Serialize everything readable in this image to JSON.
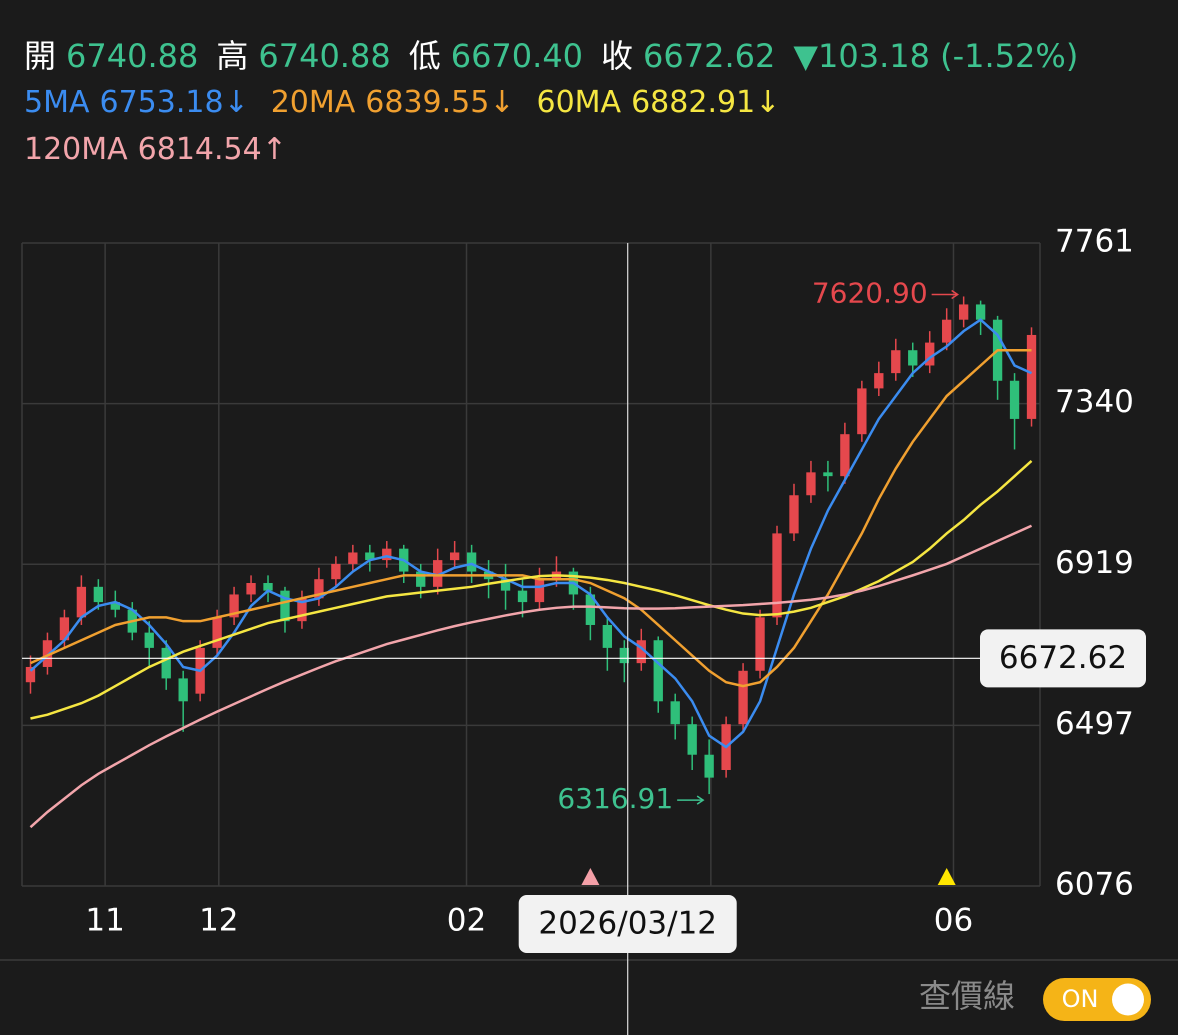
{
  "header": {
    "quote": [
      {
        "label": "開",
        "value": "6740.88"
      },
      {
        "label": "高",
        "value": "6740.88"
      },
      {
        "label": "低",
        "value": "6670.40"
      },
      {
        "label": "收",
        "value": "6672.62"
      }
    ],
    "change": "▼103.18 (-1.52%)",
    "quote_color": "#3ec28f"
  },
  "chart_data": {
    "type": "candlestick",
    "up_color": "#e5484d",
    "down_color": "#2fbf7a",
    "candles": {
      "open": [
        6610,
        6650,
        6720,
        6780,
        6860,
        6820,
        6800,
        6740,
        6700,
        6620,
        6580,
        6700,
        6780,
        6840,
        6870,
        6850,
        6770,
        6830,
        6880,
        6920,
        6950,
        6930,
        6960,
        6900,
        6860,
        6930,
        6950,
        6900,
        6880,
        6850,
        6820,
        6880,
        6900,
        6840,
        6760,
        6700,
        6660,
        6720,
        6560,
        6500,
        6420,
        6380,
        6500,
        6640,
        6780,
        7000,
        7100,
        7160,
        7150,
        7260,
        7380,
        7420,
        7480,
        7440,
        7500,
        7560,
        7600,
        7560,
        7400,
        7300
      ],
      "high": [
        6680,
        6740,
        6800,
        6890,
        6880,
        6850,
        6820,
        6770,
        6720,
        6640,
        6720,
        6800,
        6860,
        6890,
        6890,
        6860,
        6850,
        6910,
        6940,
        6970,
        6970,
        6980,
        6970,
        6920,
        6960,
        6980,
        6970,
        6930,
        6920,
        6880,
        6910,
        6940,
        6910,
        6860,
        6780,
        6720,
        6750,
        6730,
        6580,
        6520,
        6460,
        6520,
        6660,
        6800,
        7020,
        7130,
        7190,
        7190,
        7290,
        7400,
        7450,
        7510,
        7500,
        7530,
        7590,
        7620.9,
        7610,
        7570,
        7420,
        7540
      ],
      "low": [
        6580,
        6630,
        6700,
        6760,
        6800,
        6780,
        6720,
        6650,
        6590,
        6480,
        6560,
        6680,
        6760,
        6820,
        6820,
        6740,
        6750,
        6810,
        6860,
        6900,
        6900,
        6910,
        6870,
        6830,
        6840,
        6910,
        6870,
        6830,
        6800,
        6780,
        6800,
        6860,
        6800,
        6720,
        6640,
        6610,
        6640,
        6530,
        6460,
        6380,
        6316.91,
        6360,
        6480,
        6620,
        6760,
        6980,
        7080,
        7110,
        7130,
        7240,
        7360,
        7400,
        7410,
        7420,
        7480,
        7540,
        7520,
        7350,
        7220,
        7280
      ],
      "close": [
        6650,
        6720,
        6780,
        6860,
        6820,
        6800,
        6740,
        6700,
        6620,
        6560,
        6700,
        6780,
        6840,
        6870,
        6850,
        6770,
        6830,
        6880,
        6920,
        6950,
        6930,
        6960,
        6900,
        6860,
        6930,
        6950,
        6900,
        6880,
        6850,
        6820,
        6880,
        6900,
        6840,
        6760,
        6700,
        6660,
        6720,
        6560,
        6500,
        6420,
        6360,
        6500,
        6640,
        6780,
        7000,
        7100,
        7160,
        7150,
        7260,
        7380,
        7420,
        7480,
        7440,
        7500,
        7560,
        7600,
        7560,
        7400,
        7300,
        7520
      ]
    },
    "series": [
      {
        "name": "5MA",
        "color": "#3b8cf0",
        "current": 6753.18,
        "trend": "↓",
        "values": [
          6640,
          6680,
          6720,
          6780,
          6810,
          6820,
          6800,
          6760,
          6710,
          6650,
          6640,
          6680,
          6740,
          6810,
          6850,
          6830,
          6820,
          6830,
          6860,
          6900,
          6930,
          6940,
          6930,
          6900,
          6890,
          6910,
          6920,
          6900,
          6880,
          6860,
          6860,
          6870,
          6870,
          6840,
          6780,
          6730,
          6700,
          6660,
          6620,
          6560,
          6470,
          6440,
          6480,
          6560,
          6700,
          6840,
          6960,
          7060,
          7140,
          7220,
          7300,
          7360,
          7420,
          7460,
          7490,
          7530,
          7560,
          7520,
          7440,
          7420
        ]
      },
      {
        "name": "20MA",
        "color": "#f0a030",
        "current": 6839.55,
        "trend": "↓",
        "values": [
          6660,
          6680,
          6700,
          6720,
          6740,
          6760,
          6770,
          6780,
          6780,
          6770,
          6770,
          6780,
          6790,
          6800,
          6810,
          6820,
          6830,
          6840,
          6850,
          6860,
          6870,
          6880,
          6890,
          6890,
          6890,
          6890,
          6890,
          6890,
          6890,
          6890,
          6880,
          6880,
          6880,
          6870,
          6850,
          6830,
          6800,
          6760,
          6720,
          6680,
          6640,
          6610,
          6600,
          6610,
          6650,
          6700,
          6770,
          6840,
          6920,
          7000,
          7090,
          7170,
          7240,
          7300,
          7360,
          7400,
          7440,
          7480,
          7480,
          7480
        ]
      },
      {
        "name": "60MA",
        "color": "#f5e642",
        "current": 6882.91,
        "trend": "↓",
        "values": [
          6515,
          6525,
          6540,
          6555,
          6575,
          6600,
          6625,
          6650,
          6670,
          6690,
          6705,
          6720,
          6735,
          6750,
          6765,
          6775,
          6785,
          6795,
          6805,
          6815,
          6825,
          6835,
          6840,
          6845,
          6850,
          6855,
          6860,
          6868,
          6875,
          6882,
          6888,
          6890,
          6888,
          6884,
          6878,
          6870,
          6860,
          6850,
          6838,
          6825,
          6812,
          6800,
          6790,
          6786,
          6788,
          6795,
          6805,
          6820,
          6835,
          6855,
          6875,
          6900,
          6925,
          6960,
          7000,
          7035,
          7075,
          7110,
          7150,
          7190
        ]
      },
      {
        "name": "120MA",
        "color": "#f2a5ab",
        "current": 6814.54,
        "trend": "↑",
        "values": [
          6230,
          6270,
          6305,
          6340,
          6370,
          6395,
          6420,
          6445,
          6468,
          6490,
          6512,
          6533,
          6553,
          6573,
          6593,
          6612,
          6630,
          6648,
          6665,
          6680,
          6695,
          6710,
          6722,
          6734,
          6746,
          6757,
          6767,
          6776,
          6785,
          6793,
          6800,
          6805,
          6808,
          6808,
          6806,
          6804,
          6803,
          6803,
          6804,
          6806,
          6808,
          6810,
          6812,
          6815,
          6818,
          6822,
          6826,
          6832,
          6840,
          6850,
          6862,
          6876,
          6890,
          6905,
          6920,
          6940,
          6960,
          6980,
          7000,
          7020
        ]
      }
    ],
    "xlim": [
      0,
      60
    ],
    "xticks": [
      {
        "value": 4.9,
        "label": "11"
      },
      {
        "value": 11.6,
        "label": "12"
      },
      {
        "value": 26.2,
        "label": "02"
      },
      {
        "value": 40.6,
        "label": null
      },
      {
        "value": 54.9,
        "label": "06"
      }
    ],
    "ylim": [
      6076,
      7761
    ],
    "yticks": [
      6076,
      6497,
      6919,
      7340,
      7761
    ],
    "grid": true,
    "annotations": [
      {
        "x": 55.5,
        "value": 7620.9,
        "label": "7620.90",
        "color": "#e5484d"
      },
      {
        "x": 40.5,
        "value": 6316.91,
        "label": "6316.91",
        "color": "#3ec28f"
      }
    ],
    "event_markers": [
      {
        "x": 33.5,
        "color": "#f4a0a8"
      },
      {
        "x": 54.5,
        "color": "#ffe600"
      }
    ],
    "crosshair": {
      "x": 35.7,
      "x_label": "2026/03/12",
      "y": 6672.62
    }
  },
  "controls": {
    "label": "查價線",
    "toggle": "ON"
  }
}
